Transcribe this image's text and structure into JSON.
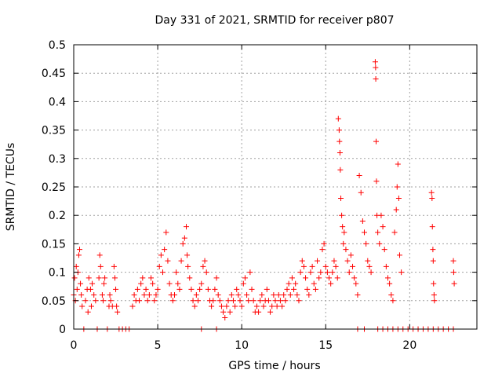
{
  "chart_data": {
    "type": "scatter",
    "title": "Day 331 of 2021, SRMTID for receiver p807",
    "xlabel": "GPS time / hours",
    "ylabel": "SRMTID / TECUs",
    "xlim": [
      0,
      24
    ],
    "ylim": [
      0,
      0.5
    ],
    "x_ticks": [
      "0",
      "5",
      "10",
      "15",
      "20"
    ],
    "x_tick_values": [
      0,
      5,
      10,
      15,
      20
    ],
    "y_ticks": [
      "0",
      "0.05",
      "0.1",
      "0.15",
      "0.2",
      "0.25",
      "0.3",
      "0.35",
      "0.4",
      "0.45",
      "0.5"
    ],
    "y_tick_values": [
      0,
      0.05,
      0.1,
      0.15,
      0.2,
      0.25,
      0.3,
      0.35,
      0.4,
      0.45,
      0.5
    ],
    "grid": true,
    "marker": "+",
    "color": "#ff0000",
    "series": [
      {
        "name": "SRMTID",
        "points": [
          [
            0.0,
            0.06
          ],
          [
            0.05,
            0.09
          ],
          [
            0.1,
            0.05
          ],
          [
            0.15,
            0.11
          ],
          [
            0.2,
            0.07
          ],
          [
            0.25,
            0.1
          ],
          [
            0.3,
            0.13
          ],
          [
            0.35,
            0.14
          ],
          [
            0.4,
            0.08
          ],
          [
            0.45,
            0.06
          ],
          [
            0.5,
            0.04
          ],
          [
            0.7,
            0.05
          ],
          [
            0.8,
            0.07
          ],
          [
            0.85,
            0.03
          ],
          [
            0.9,
            0.09
          ],
          [
            1.0,
            0.07
          ],
          [
            1.05,
            0.04
          ],
          [
            1.1,
            0.08
          ],
          [
            1.2,
            0.06
          ],
          [
            1.3,
            0.05
          ],
          [
            1.5,
            0.09
          ],
          [
            1.55,
            0.13
          ],
          [
            1.6,
            0.11
          ],
          [
            1.7,
            0.06
          ],
          [
            1.75,
            0.05
          ],
          [
            1.8,
            0.08
          ],
          [
            1.85,
            0.09
          ],
          [
            2.1,
            0.04
          ],
          [
            2.15,
            0.06
          ],
          [
            2.2,
            0.05
          ],
          [
            2.3,
            0.04
          ],
          [
            2.4,
            0.11
          ],
          [
            2.45,
            0.09
          ],
          [
            2.5,
            0.07
          ],
          [
            2.55,
            0.04
          ],
          [
            2.6,
            0.03
          ],
          [
            3.5,
            0.04
          ],
          [
            3.6,
            0.06
          ],
          [
            3.7,
            0.05
          ],
          [
            3.8,
            0.07
          ],
          [
            3.9,
            0.05
          ],
          [
            4.0,
            0.08
          ],
          [
            4.1,
            0.09
          ],
          [
            4.2,
            0.06
          ],
          [
            4.3,
            0.07
          ],
          [
            4.4,
            0.05
          ],
          [
            4.5,
            0.06
          ],
          [
            4.6,
            0.09
          ],
          [
            4.7,
            0.08
          ],
          [
            4.8,
            0.05
          ],
          [
            4.9,
            0.06
          ],
          [
            5.0,
            0.07
          ],
          [
            5.1,
            0.11
          ],
          [
            5.2,
            0.13
          ],
          [
            5.3,
            0.1
          ],
          [
            5.4,
            0.14
          ],
          [
            5.5,
            0.17
          ],
          [
            5.6,
            0.12
          ],
          [
            5.7,
            0.08
          ],
          [
            5.8,
            0.06
          ],
          [
            5.9,
            0.05
          ],
          [
            6.0,
            0.06
          ],
          [
            6.1,
            0.1
          ],
          [
            6.2,
            0.08
          ],
          [
            6.3,
            0.07
          ],
          [
            6.4,
            0.12
          ],
          [
            6.5,
            0.15
          ],
          [
            6.6,
            0.16
          ],
          [
            6.7,
            0.18
          ],
          [
            6.75,
            0.13
          ],
          [
            6.8,
            0.11
          ],
          [
            6.9,
            0.09
          ],
          [
            7.0,
            0.07
          ],
          [
            7.1,
            0.05
          ],
          [
            7.2,
            0.04
          ],
          [
            7.3,
            0.06
          ],
          [
            7.4,
            0.05
          ],
          [
            7.5,
            0.07
          ],
          [
            7.6,
            0.08
          ],
          [
            7.7,
            0.11
          ],
          [
            7.8,
            0.12
          ],
          [
            7.9,
            0.1
          ],
          [
            8.0,
            0.07
          ],
          [
            8.1,
            0.05
          ],
          [
            8.2,
            0.04
          ],
          [
            8.3,
            0.05
          ],
          [
            8.4,
            0.07
          ],
          [
            8.5,
            0.09
          ],
          [
            8.6,
            0.06
          ],
          [
            8.7,
            0.05
          ],
          [
            8.8,
            0.04
          ],
          [
            8.9,
            0.03
          ],
          [
            9.0,
            0.02
          ],
          [
            9.1,
            0.04
          ],
          [
            9.2,
            0.05
          ],
          [
            9.3,
            0.03
          ],
          [
            9.4,
            0.06
          ],
          [
            9.5,
            0.05
          ],
          [
            9.6,
            0.04
          ],
          [
            9.7,
            0.07
          ],
          [
            9.8,
            0.06
          ],
          [
            9.9,
            0.05
          ],
          [
            10.0,
            0.04
          ],
          [
            10.1,
            0.08
          ],
          [
            10.2,
            0.09
          ],
          [
            10.3,
            0.06
          ],
          [
            10.4,
            0.05
          ],
          [
            10.5,
            0.1
          ],
          [
            10.6,
            0.07
          ],
          [
            10.7,
            0.05
          ],
          [
            10.8,
            0.03
          ],
          [
            10.9,
            0.04
          ],
          [
            11.0,
            0.03
          ],
          [
            11.1,
            0.05
          ],
          [
            11.2,
            0.06
          ],
          [
            11.3,
            0.04
          ],
          [
            11.4,
            0.05
          ],
          [
            11.5,
            0.07
          ],
          [
            11.6,
            0.05
          ],
          [
            11.7,
            0.03
          ],
          [
            11.8,
            0.04
          ],
          [
            11.9,
            0.06
          ],
          [
            12.0,
            0.05
          ],
          [
            12.1,
            0.04
          ],
          [
            12.2,
            0.06
          ],
          [
            12.3,
            0.05
          ],
          [
            12.4,
            0.04
          ],
          [
            12.5,
            0.06
          ],
          [
            12.6,
            0.05
          ],
          [
            12.7,
            0.07
          ],
          [
            12.8,
            0.08
          ],
          [
            12.9,
            0.06
          ],
          [
            13.0,
            0.09
          ],
          [
            13.1,
            0.07
          ],
          [
            13.2,
            0.08
          ],
          [
            13.3,
            0.06
          ],
          [
            13.4,
            0.05
          ],
          [
            13.5,
            0.1
          ],
          [
            13.6,
            0.12
          ],
          [
            13.7,
            0.11
          ],
          [
            13.8,
            0.09
          ],
          [
            13.9,
            0.07
          ],
          [
            14.0,
            0.06
          ],
          [
            14.1,
            0.1
          ],
          [
            14.2,
            0.11
          ],
          [
            14.3,
            0.08
          ],
          [
            14.4,
            0.07
          ],
          [
            14.5,
            0.12
          ],
          [
            14.6,
            0.09
          ],
          [
            14.7,
            0.1
          ],
          [
            14.8,
            0.14
          ],
          [
            14.9,
            0.15
          ],
          [
            15.0,
            0.11
          ],
          [
            15.1,
            0.1
          ],
          [
            15.2,
            0.09
          ],
          [
            15.3,
            0.08
          ],
          [
            15.4,
            0.1
          ],
          [
            15.5,
            0.12
          ],
          [
            15.6,
            0.11
          ],
          [
            15.7,
            0.09
          ],
          [
            15.75,
            0.37
          ],
          [
            15.8,
            0.35
          ],
          [
            15.82,
            0.33
          ],
          [
            15.85,
            0.31
          ],
          [
            15.87,
            0.28
          ],
          [
            15.9,
            0.23
          ],
          [
            15.95,
            0.2
          ],
          [
            16.0,
            0.18
          ],
          [
            16.05,
            0.15
          ],
          [
            16.1,
            0.17
          ],
          [
            16.2,
            0.14
          ],
          [
            16.3,
            0.12
          ],
          [
            16.4,
            0.1
          ],
          [
            16.5,
            0.13
          ],
          [
            16.6,
            0.11
          ],
          [
            16.7,
            0.09
          ],
          [
            16.8,
            0.08
          ],
          [
            16.9,
            0.06
          ],
          [
            17.0,
            0.27
          ],
          [
            17.1,
            0.24
          ],
          [
            17.2,
            0.19
          ],
          [
            17.3,
            0.17
          ],
          [
            17.4,
            0.15
          ],
          [
            17.5,
            0.12
          ],
          [
            17.6,
            0.11
          ],
          [
            17.7,
            0.1
          ],
          [
            17.95,
            0.47
          ],
          [
            17.97,
            0.46
          ],
          [
            17.98,
            0.44
          ],
          [
            18.0,
            0.33
          ],
          [
            18.02,
            0.26
          ],
          [
            18.05,
            0.2
          ],
          [
            18.1,
            0.17
          ],
          [
            18.2,
            0.15
          ],
          [
            18.3,
            0.2
          ],
          [
            18.4,
            0.18
          ],
          [
            18.5,
            0.14
          ],
          [
            18.6,
            0.11
          ],
          [
            18.7,
            0.09
          ],
          [
            18.8,
            0.08
          ],
          [
            18.9,
            0.06
          ],
          [
            19.0,
            0.05
          ],
          [
            19.1,
            0.17
          ],
          [
            19.2,
            0.21
          ],
          [
            19.25,
            0.25
          ],
          [
            19.3,
            0.29
          ],
          [
            19.35,
            0.23
          ],
          [
            19.4,
            0.13
          ],
          [
            19.5,
            0.1
          ],
          [
            21.3,
            0.24
          ],
          [
            21.33,
            0.23
          ],
          [
            21.35,
            0.18
          ],
          [
            21.38,
            0.14
          ],
          [
            21.4,
            0.12
          ],
          [
            21.42,
            0.08
          ],
          [
            21.45,
            0.06
          ],
          [
            21.47,
            0.05
          ],
          [
            22.6,
            0.12
          ],
          [
            22.62,
            0.1
          ],
          [
            22.65,
            0.08
          ],
          [
            0.6,
            0
          ],
          [
            1.4,
            0
          ],
          [
            2.0,
            0
          ],
          [
            2.7,
            0
          ],
          [
            2.9,
            0
          ],
          [
            3.1,
            0
          ],
          [
            3.3,
            0
          ],
          [
            7.6,
            0
          ],
          [
            8.5,
            0
          ],
          [
            16.9,
            0
          ],
          [
            17.3,
            0
          ],
          [
            18.1,
            0
          ],
          [
            18.4,
            0
          ],
          [
            18.7,
            0
          ],
          [
            19.0,
            0
          ],
          [
            19.3,
            0
          ],
          [
            19.6,
            0
          ],
          [
            19.9,
            0
          ],
          [
            20.2,
            0
          ],
          [
            20.5,
            0
          ],
          [
            20.8,
            0
          ],
          [
            21.1,
            0
          ],
          [
            21.4,
            0
          ],
          [
            21.7,
            0
          ],
          [
            22.0,
            0
          ],
          [
            22.3,
            0
          ],
          [
            22.6,
            0
          ]
        ]
      }
    ]
  }
}
